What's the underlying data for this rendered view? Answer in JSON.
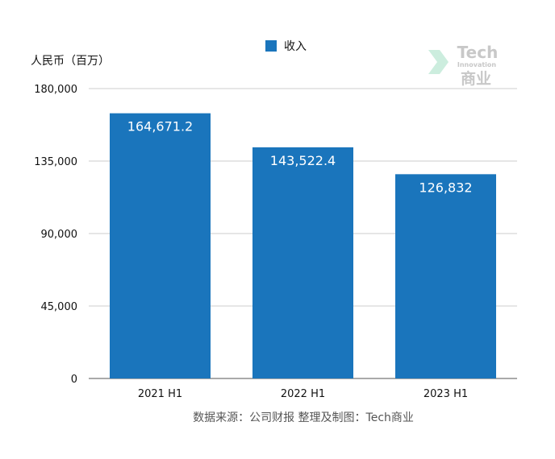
{
  "chart_data": {
    "type": "bar",
    "title": "",
    "ylabel": "人民币（百万）",
    "xlabel": "",
    "categories": [
      "2021 H1",
      "2022 H1",
      "2023 H1"
    ],
    "series": [
      {
        "name": "收入",
        "values": [
          164671.2,
          143522.4,
          126832
        ],
        "labels": [
          "164,671.2",
          "143,522.4",
          "126,832"
        ],
        "color": "#1a75bc"
      }
    ],
    "ylim": [
      0,
      180000
    ],
    "yticks": [
      0,
      45000,
      90000,
      135000,
      180000
    ],
    "ytick_labels": [
      "0",
      "45,000",
      "90,000",
      "135,000",
      "180,000"
    ],
    "grid": true,
    "legend_position": "top-center",
    "source": "数据来源：公司财报 整理及制图：Tech商业"
  },
  "watermark": {
    "line1": "Tech",
    "line2": "Innovation",
    "line3": "商业"
  }
}
